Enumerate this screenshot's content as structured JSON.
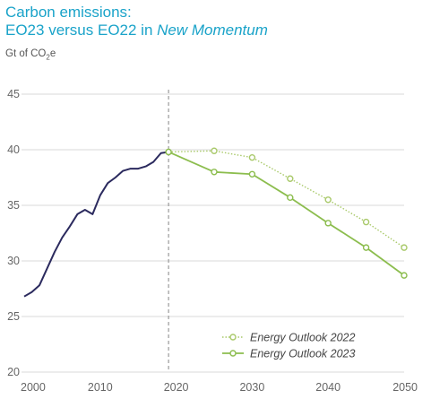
{
  "title": {
    "line1": "Carbon emissions:",
    "line2_prefix": "EO23 versus EO22 in ",
    "line2_emph": "New Momentum"
  },
  "unit": {
    "prefix": "Gt of CO",
    "sub": "2",
    "suffix": "e"
  },
  "colors": {
    "title": "#1aa3c9",
    "history": "#2b2a5e",
    "eo22": "#a9c96a",
    "eo23": "#8cbd4e",
    "grid": "#d9d9d9",
    "divider": "#999999"
  },
  "chart_data": {
    "type": "line",
    "ylim": [
      20,
      45
    ],
    "xlim": [
      2000,
      2050
    ],
    "y_ticks": [
      20,
      25,
      30,
      35,
      40,
      45
    ],
    "x_ticks": [
      2000,
      2010,
      2020,
      2030,
      2040,
      2050
    ],
    "divider_x": 2019,
    "grid": "horizontal",
    "legend_position": "bottom-right",
    "series": [
      {
        "key": "history",
        "style": "solid",
        "markers": false,
        "x": [
          2000,
          2001,
          2002,
          2003,
          2004,
          2005,
          2006,
          2007,
          2008,
          2009,
          2010,
          2011,
          2012,
          2013,
          2014,
          2015,
          2016,
          2017,
          2018,
          2019
        ],
        "y": [
          26.8,
          27.2,
          27.8,
          29.3,
          30.8,
          32.1,
          33.1,
          34.2,
          34.6,
          34.2,
          35.9,
          37.0,
          37.5,
          38.1,
          38.3,
          38.3,
          38.5,
          38.9,
          39.7,
          39.8
        ]
      },
      {
        "key": "eo22",
        "name": "Energy Outlook 2022",
        "style": "dotted",
        "markers": true,
        "x": [
          2019,
          2025,
          2030,
          2035,
          2040,
          2045,
          2050
        ],
        "y": [
          39.8,
          39.9,
          39.3,
          37.4,
          35.5,
          33.5,
          31.2
        ]
      },
      {
        "key": "eo23",
        "name": "Energy Outlook 2023",
        "style": "solid",
        "markers": true,
        "x": [
          2019,
          2025,
          2030,
          2035,
          2040,
          2045,
          2050
        ],
        "y": [
          39.8,
          38.0,
          37.8,
          35.7,
          33.4,
          31.2,
          28.7
        ]
      }
    ]
  }
}
